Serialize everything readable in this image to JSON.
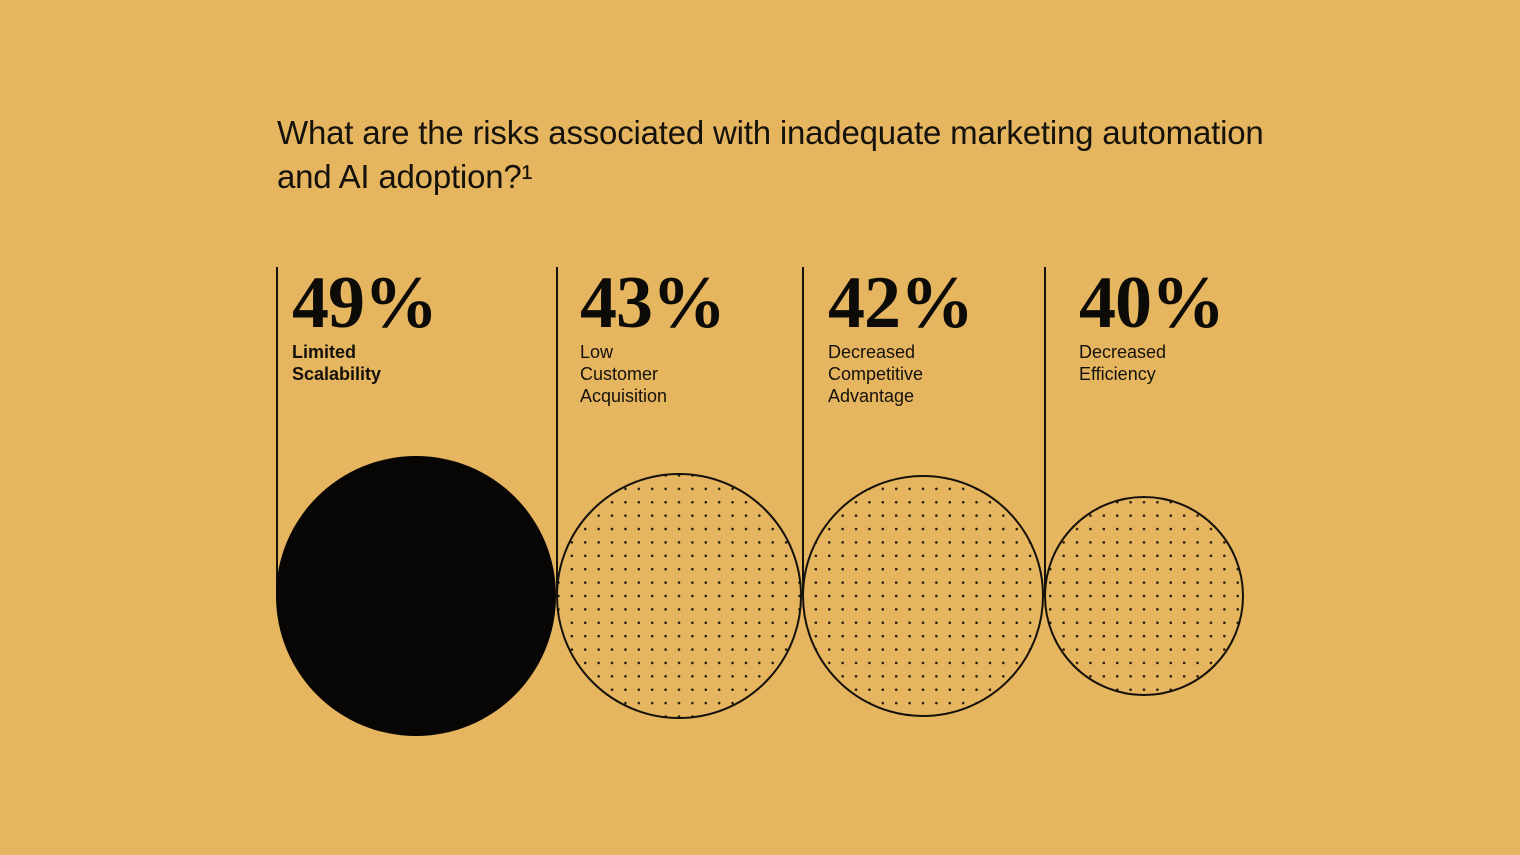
{
  "page": {
    "background_color": "#e6b55f",
    "ink_color": "#14100a"
  },
  "title": {
    "text": "What are the risks associated with inadequate marketing automation\nand AI adoption?¹",
    "footnote_marker": "1"
  },
  "chart_data": {
    "type": "bubble",
    "title": "What are the risks associated with inadequate marketing automation and AI adoption?",
    "footnote": "1",
    "unit": "%",
    "layout": "four tangent circles sized by value, hanging from vertical rules, value and label above each circle",
    "items": [
      {
        "value": 49,
        "display": "49%",
        "label": "Limited Scalability",
        "label_display": "Limited\nScalability",
        "fill": "solid-black",
        "emphasis": true
      },
      {
        "value": 43,
        "display": "43%",
        "label": "Low Customer Acquisition",
        "label_display": "Low\nCustomer\nAcquisition",
        "fill": "dotted-outline",
        "emphasis": false
      },
      {
        "value": 42,
        "display": "42%",
        "label": "Decreased Competitive Advantage",
        "label_display": "Decreased\nCompetitive\nAdvantage",
        "fill": "dotted-outline",
        "emphasis": false
      },
      {
        "value": 40,
        "display": "40%",
        "label": "Decreased Efficiency",
        "label_display": "Decreased\nEfficiency",
        "fill": "dotted-outline",
        "emphasis": false
      }
    ]
  }
}
